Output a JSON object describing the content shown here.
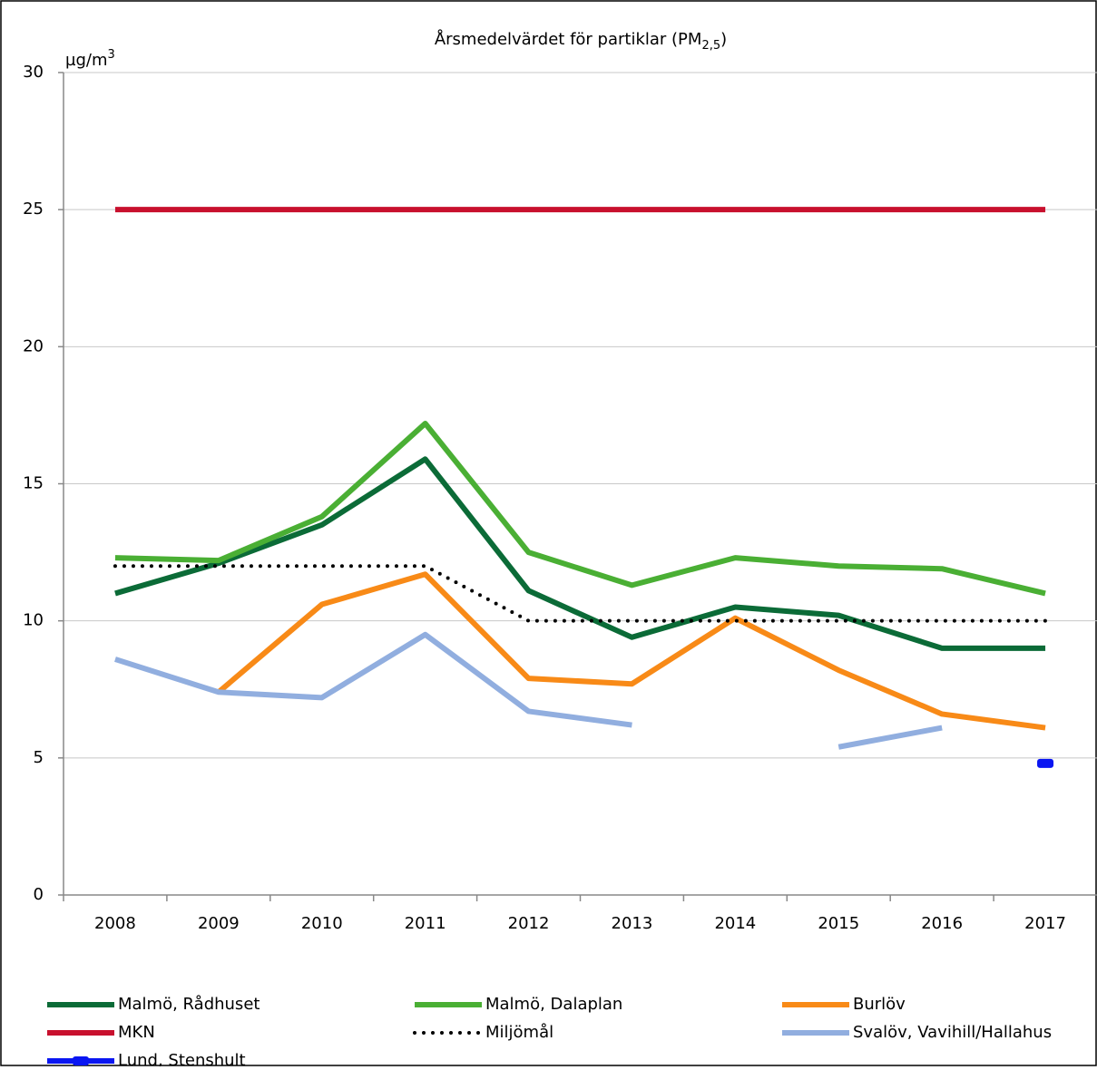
{
  "chart_data": {
    "type": "line",
    "title": [
      "Årsmedelvärdet för partiklar (PM",
      "2,5",
      ")"
    ],
    "y_label": [
      "µg/m",
      "3"
    ],
    "categories": [
      "2008",
      "2009",
      "2010",
      "2011",
      "2012",
      "2013",
      "2014",
      "2015",
      "2016",
      "2017"
    ],
    "ylim": [
      0,
      30
    ],
    "yticks": [
      0,
      5,
      10,
      15,
      20,
      25,
      30
    ],
    "grid": true,
    "series": [
      {
        "name": "Malmö, Rådhuset",
        "color": "#0b6b37",
        "style": "solid",
        "values": [
          11,
          12.1,
          13.5,
          15.9,
          11.1,
          9.4,
          10.5,
          10.2,
          9.0,
          9.0
        ]
      },
      {
        "name": "Malmö, Dalaplan",
        "color": "#4aaf34",
        "style": "solid",
        "values": [
          12.3,
          12.2,
          13.8,
          17.2,
          12.5,
          11.3,
          12.3,
          12.0,
          11.9,
          11.0
        ]
      },
      {
        "name": "Burlöv",
        "color": "#f88a17",
        "style": "solid",
        "values": [
          null,
          7.4,
          10.6,
          11.7,
          7.9,
          7.7,
          10.1,
          8.2,
          6.6,
          6.1
        ]
      },
      {
        "name": "MKN",
        "color": "#c8102e",
        "style": "solid",
        "values": [
          25,
          25,
          25,
          25,
          25,
          25,
          25,
          25,
          25,
          25
        ]
      },
      {
        "name": "Miljömål",
        "color": "#000000",
        "style": "dotted",
        "values": [
          12,
          12,
          12,
          12,
          10,
          10,
          10,
          10,
          10,
          10
        ]
      },
      {
        "name": "Svalöv, Vavihill/Hallahus",
        "color": "#91aedf",
        "style": "solid",
        "values": [
          8.6,
          7.4,
          7.2,
          9.5,
          6.7,
          6.2,
          null,
          5.4,
          6.1,
          null
        ]
      },
      {
        "name": "Lund, Stenshult",
        "color": "#0a16f2",
        "style": "marker",
        "values": [
          null,
          null,
          null,
          null,
          null,
          null,
          null,
          null,
          null,
          4.8
        ]
      }
    ]
  }
}
